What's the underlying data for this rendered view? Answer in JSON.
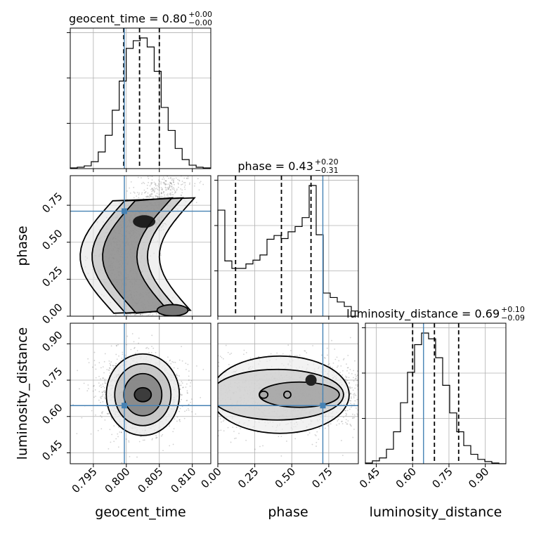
{
  "chart_data": {
    "type": "corner",
    "parameters": [
      "geocent_time",
      "phase",
      "luminosity_distance"
    ],
    "ranges": {
      "geocent_time": [
        0.7915,
        0.8128
      ],
      "phase": [
        0.0,
        0.95
      ],
      "luminosity_distance": [
        0.405,
        0.985
      ]
    },
    "ticks": {
      "geocent_time": [
        0.795,
        0.8,
        0.805,
        0.81
      ],
      "phase": [
        0.0,
        0.25,
        0.5,
        0.75
      ],
      "luminosity_distance": [
        0.45,
        0.6,
        0.75,
        0.9
      ]
    },
    "tick_labels": {
      "geocent_time": [
        "0.795",
        "0.800",
        "0.805",
        "0.810"
      ],
      "phase": [
        "0.00",
        "0.25",
        "0.50",
        "0.75"
      ],
      "luminosity_distance": [
        "0.45",
        "0.60",
        "0.75",
        "0.90"
      ]
    },
    "truths": {
      "geocent_time": 0.7997,
      "phase": 0.71,
      "luminosity_distance": 0.645
    },
    "truth_color": "#4682b4",
    "grid": true,
    "titles": [
      {
        "param": "geocent_time",
        "text": "geocent_time = 0.80",
        "sup": "+0.00",
        "sub": "−0.00"
      },
      {
        "param": "phase",
        "text": "phase = 0.43",
        "sup": "+0.20",
        "sub": "−0.31"
      },
      {
        "param": "luminosity_distance",
        "text": "luminosity_distance = 0.69",
        "sup": "+0.10",
        "sub": "−0.09"
      }
    ],
    "quantiles": {
      "geocent_time": [
        0.7996,
        0.802,
        0.805
      ],
      "phase": [
        0.12,
        0.43,
        0.63
      ],
      "luminosity_distance": [
        0.6,
        0.69,
        0.79
      ]
    },
    "histograms": {
      "geocent_time": {
        "bin_start": 0.7915,
        "bin_width": 0.00106,
        "counts": [
          1,
          2,
          4,
          10,
          24,
          48,
          84,
          126,
          173,
          184,
          188,
          175,
          140,
          88,
          55,
          29,
          13,
          5,
          2,
          1
        ]
      },
      "phase": {
        "bin_start": 0.0,
        "bin_width": 0.0475,
        "counts": [
          142,
          74,
          64,
          64,
          70,
          75,
          82,
          103,
          108,
          104,
          113,
          120,
          132,
          175,
          109,
          31,
          25,
          19,
          13,
          7
        ]
      },
      "luminosity_distance": {
        "bin_start": 0.405,
        "bin_width": 0.029,
        "counts": [
          1,
          4,
          8,
          20,
          44,
          84,
          126,
          164,
          180,
          172,
          146,
          108,
          70,
          44,
          25,
          13,
          6,
          3,
          1,
          0
        ]
      }
    }
  }
}
